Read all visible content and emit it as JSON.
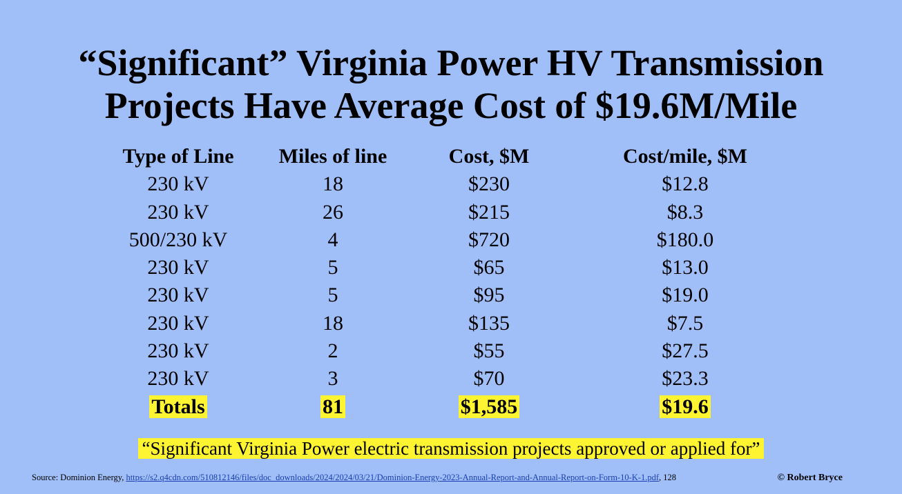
{
  "title": {
    "line1": "“Significant” Virginia Power HV Transmission",
    "line2": "Projects Have Average Cost of $19.6M/Mile"
  },
  "table": {
    "headers": [
      "Type of Line",
      "Miles of line",
      "Cost, $M",
      "Cost/mile, $M"
    ],
    "rows": [
      [
        "230 kV",
        "18",
        "$230",
        "$12.8"
      ],
      [
        "230 kV",
        "26",
        "$215",
        "$8.3"
      ],
      [
        "500/230 kV",
        "4",
        "$720",
        "$180.0"
      ],
      [
        "230 kV",
        "5",
        "$65",
        "$13.0"
      ],
      [
        "230 kV",
        "5",
        "$95",
        "$19.0"
      ],
      [
        "230 kV",
        "18",
        "$135",
        "$7.5"
      ],
      [
        "230 kV",
        "2",
        "$55",
        "$27.5"
      ],
      [
        "230 kV",
        "3",
        "$70",
        "$23.3"
      ]
    ],
    "totals": [
      "Totals",
      "81",
      "$1,585",
      "$19.6"
    ]
  },
  "quote": "“Significant Virginia Power electric transmission projects approved or applied for”",
  "source": {
    "prefix": "Source: Dominion Energy, ",
    "link": "https://s2.q4cdn.com/510812146/files/doc_downloads/2024/2024/03/21/Dominion-Energy-2023-Annual-Report-and-Annual-Report-on-Form-10-K-1.pdf",
    "suffix": ", 128"
  },
  "credit": "© Robert Bryce",
  "colors": {
    "background": "#a0bff8",
    "highlight": "#fff431",
    "link": "#1b3fb0"
  }
}
